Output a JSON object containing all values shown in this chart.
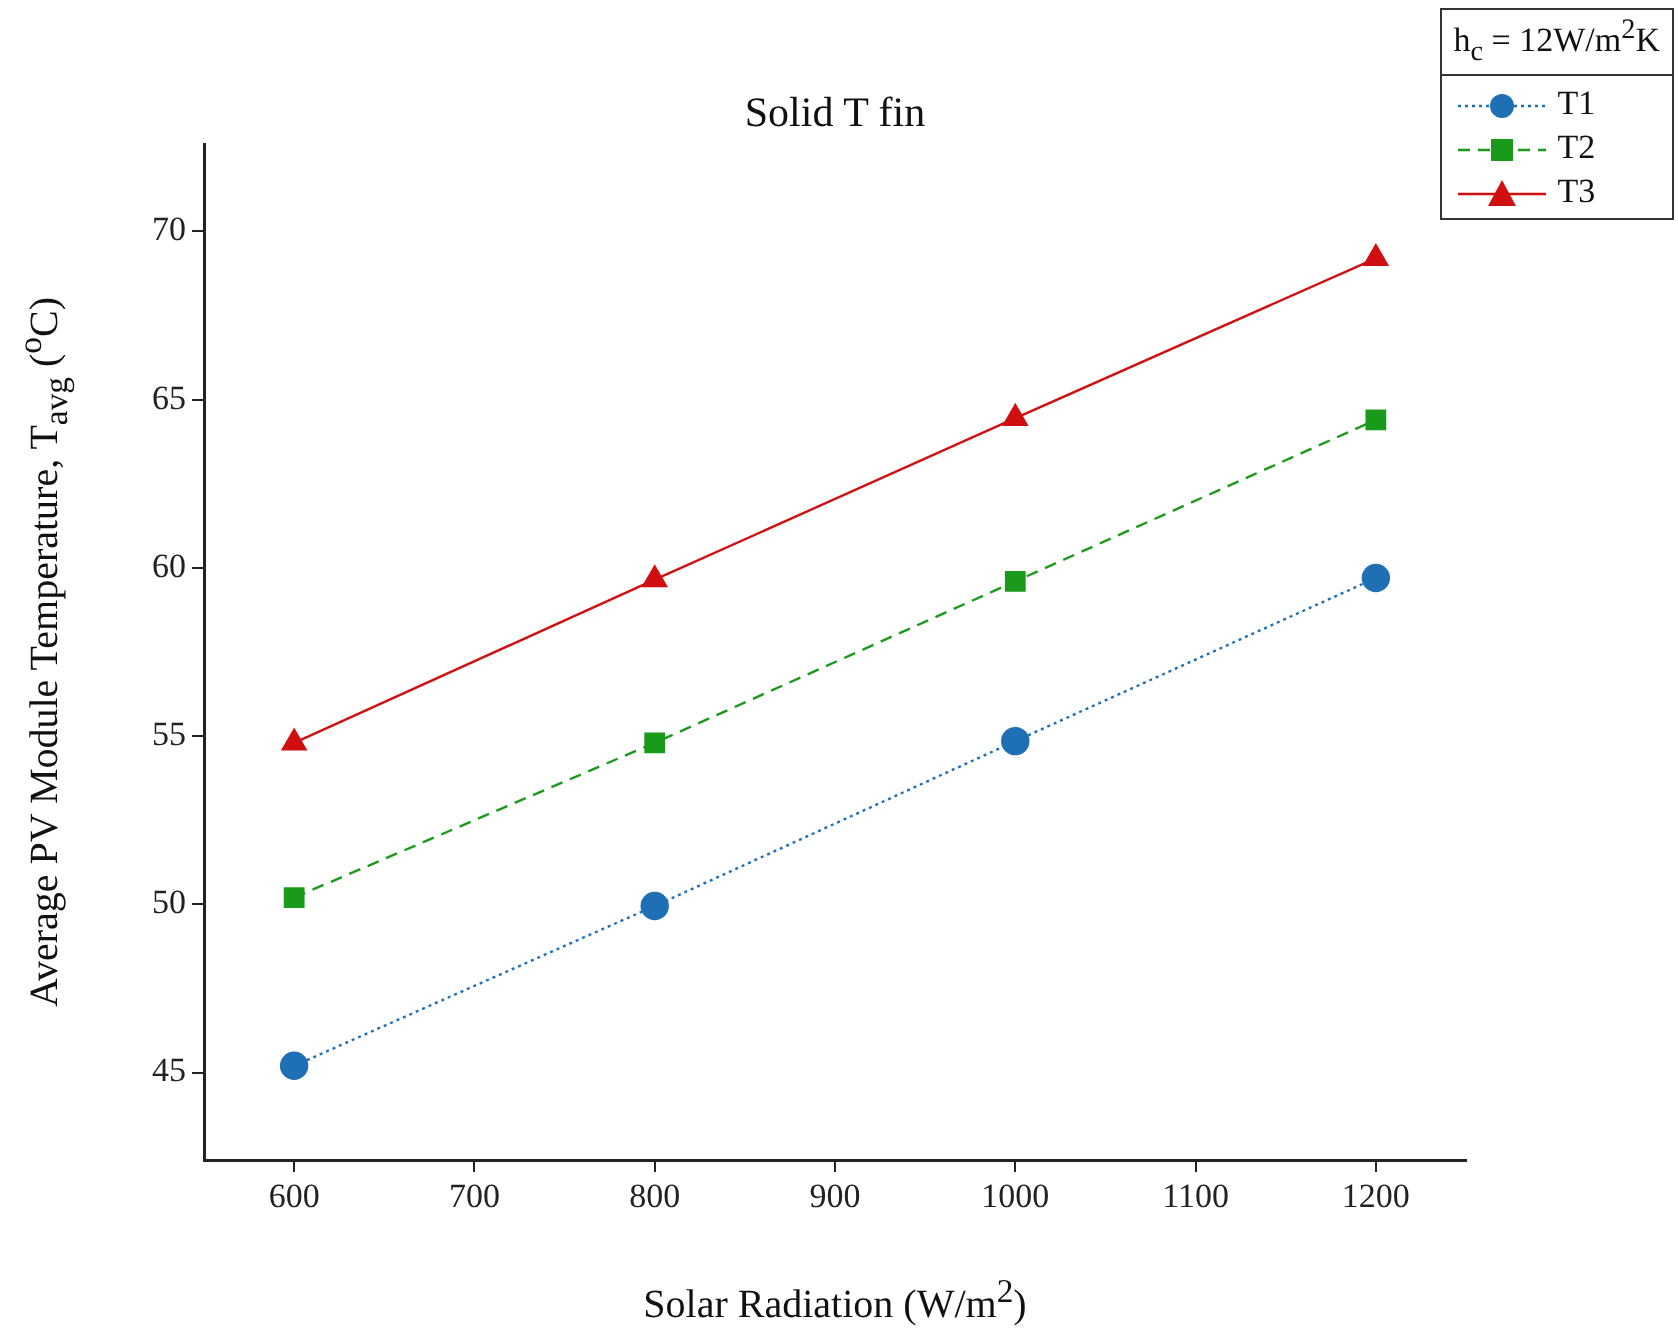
{
  "chart_data": {
    "type": "line",
    "title": "Solid T fin",
    "xlabel": "Solar Radiation (W/m$^{2}$)",
    "ylabel": "Average PV Module Temperature, T$_{avg}$ ($^{o}$C)",
    "legend_title": "h$_{c}$ = 12W/m$^{2}$K",
    "legend": "top right",
    "x": [
      600,
      800,
      1000,
      1200
    ],
    "series": [
      {
        "name": "T1",
        "color": "#1f6fb4",
        "values": [
          45.2,
          49.95,
          54.85,
          59.7
        ],
        "marker": "circle",
        "line_style": "dotted"
      },
      {
        "name": "T2",
        "color": "#1a9a1a",
        "values": [
          50.2,
          54.8,
          59.6,
          64.4
        ],
        "marker": "square",
        "line_style": "dashed"
      },
      {
        "name": "T3",
        "color": "#d01010",
        "values": [
          54.8,
          59.65,
          64.45,
          69.2
        ],
        "marker": "triangle",
        "line_style": "solid"
      }
    ],
    "xlim": [
      550,
      1250
    ],
    "xticks": [
      600,
      700,
      800,
      900,
      1000,
      1100,
      1200
    ],
    "ylim": [
      42.4,
      72.6
    ],
    "yticks": [
      45,
      50,
      55,
      60,
      65,
      70
    ]
  }
}
